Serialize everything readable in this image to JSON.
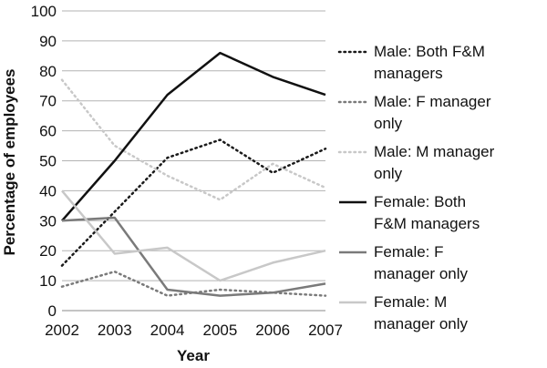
{
  "chart_data": {
    "type": "line",
    "title": "",
    "xlabel": "Year",
    "ylabel": "Percentage of employees",
    "ylim": [
      0,
      100
    ],
    "yticks": [
      "0",
      "10",
      "20",
      "30",
      "40",
      "50",
      "60",
      "70",
      "80",
      "90",
      "100"
    ],
    "categories": [
      "2002",
      "2003",
      "2004",
      "2005",
      "2006",
      "2007"
    ],
    "grid": "horizontal",
    "legend_position": "right",
    "series": [
      {
        "name": "Male: Both F&M managers",
        "legend_lines": [
          "Male: Both F&M",
          "managers"
        ],
        "values": [
          15,
          33,
          51,
          57,
          46,
          54
        ],
        "color": "#1a1a1a",
        "style": "dotted"
      },
      {
        "name": "Male: F manager only",
        "legend_lines": [
          "Male: F manager",
          "only"
        ],
        "values": [
          8,
          13,
          5,
          7,
          6,
          5
        ],
        "color": "#7a7a7a",
        "style": "dotted"
      },
      {
        "name": "Male: M manager only",
        "legend_lines": [
          "Male: M manager",
          "only"
        ],
        "values": [
          77,
          55,
          45,
          37,
          49,
          41
        ],
        "color": "#c8c8c8",
        "style": "dotted"
      },
      {
        "name": "Female: Both F&M managers",
        "legend_lines": [
          "Female: Both",
          "F&M managers"
        ],
        "values": [
          30,
          50,
          72,
          86,
          78,
          72
        ],
        "color": "#111111",
        "style": "solid"
      },
      {
        "name": "Female: F manager only",
        "legend_lines": [
          "Female: F",
          "manager only"
        ],
        "values": [
          30,
          31,
          7,
          5,
          6,
          9
        ],
        "color": "#7a7a7a",
        "style": "solid"
      },
      {
        "name": "Female: M manager only",
        "legend_lines": [
          "Female: M",
          "manager only"
        ],
        "values": [
          40,
          19,
          21,
          10,
          16,
          20
        ],
        "color": "#c8c8c8",
        "style": "solid"
      }
    ]
  }
}
